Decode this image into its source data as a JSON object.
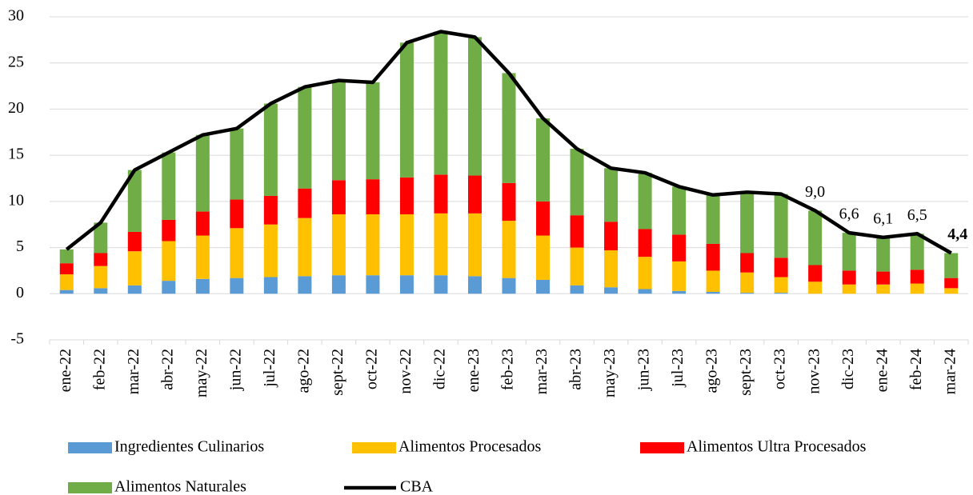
{
  "chart_data": {
    "type": "bar",
    "stacked": true,
    "categories": [
      "ene-22",
      "feb-22",
      "mar-22",
      "abr-22",
      "may-22",
      "jun-22",
      "jul-22",
      "ago-22",
      "sept-22",
      "oct-22",
      "nov-22",
      "dic-22",
      "ene-23",
      "feb-23",
      "mar-23",
      "abr-23",
      "may-23",
      "jun-23",
      "jul-23",
      "ago-23",
      "sept-23",
      "oct-23",
      "nov-23",
      "dic-23",
      "ene-24",
      "feb-24",
      "mar-24"
    ],
    "series": [
      {
        "name": "Ingredientes Culinarios",
        "color": "#5b9bd5",
        "values": [
          0.4,
          0.6,
          0.9,
          1.4,
          1.6,
          1.7,
          1.8,
          1.9,
          2.0,
          2.0,
          2.0,
          2.0,
          1.9,
          1.7,
          1.5,
          0.9,
          0.7,
          0.5,
          0.3,
          0.2,
          0.1,
          0.1,
          0,
          0,
          0,
          0,
          0
        ]
      },
      {
        "name": "Alimentos Procesados",
        "color": "#ffc000",
        "values": [
          1.7,
          2.4,
          3.7,
          4.3,
          4.7,
          5.4,
          5.7,
          6.3,
          6.6,
          6.6,
          6.6,
          6.7,
          6.8,
          6.2,
          4.8,
          4.1,
          4.0,
          3.5,
          3.2,
          2.3,
          2.2,
          1.7,
          1.3,
          1.0,
          1.0,
          1.1,
          0.6
        ]
      },
      {
        "name": "Alimentos Ultra Procesados",
        "color": "#ff0000",
        "values": [
          1.2,
          1.4,
          2.1,
          2.3,
          2.6,
          3.1,
          3.1,
          3.2,
          3.7,
          3.8,
          4.0,
          4.2,
          4.1,
          4.1,
          3.7,
          3.5,
          3.1,
          3.0,
          2.9,
          2.9,
          2.1,
          2.1,
          1.8,
          1.5,
          1.4,
          1.5,
          1.1
        ]
      },
      {
        "name": "Alimentos Naturales",
        "color": "#70ad47",
        "values": [
          1.5,
          3.3,
          6.7,
          7.3,
          8.3,
          7.7,
          10.0,
          11.0,
          10.8,
          10.5,
          14.6,
          15.5,
          15.0,
          11.9,
          9.0,
          7.2,
          5.8,
          6.1,
          5.2,
          5.3,
          6.6,
          6.9,
          5.9,
          4.1,
          3.7,
          3.9,
          2.7
        ]
      },
      {
        "name": "CBA",
        "type": "line",
        "color": "#000000",
        "values": [
          4.8,
          7.7,
          13.4,
          15.3,
          17.2,
          17.9,
          20.6,
          22.4,
          23.1,
          22.9,
          27.2,
          28.4,
          27.8,
          23.9,
          19.0,
          15.7,
          13.6,
          13.1,
          11.6,
          10.7,
          11.0,
          10.8,
          9.0,
          6.6,
          6.1,
          6.5,
          4.4
        ],
        "value_labels": [
          null,
          null,
          null,
          null,
          null,
          null,
          null,
          null,
          null,
          null,
          null,
          null,
          null,
          null,
          null,
          null,
          null,
          null,
          null,
          null,
          null,
          null,
          "9,0",
          "6,6",
          "6,1",
          "6,5",
          "4,4"
        ]
      }
    ],
    "ylim": [
      -5,
      30
    ],
    "yticks": [
      -5,
      0,
      5,
      10,
      15,
      20,
      25,
      30
    ],
    "grid": true,
    "legend": "bottom"
  }
}
